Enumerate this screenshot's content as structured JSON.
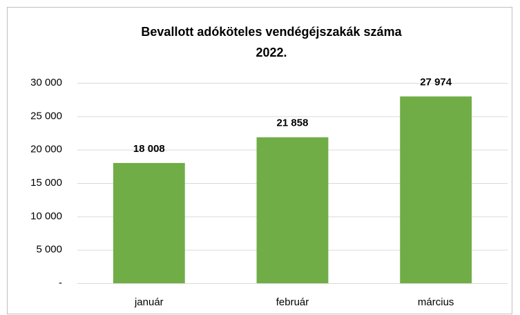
{
  "chart_data": {
    "type": "bar",
    "title": "Bevallott adóköteles vendégéjszakák száma",
    "subtitle": "2022.",
    "categories": [
      "január",
      "február",
      "március"
    ],
    "values": [
      18008,
      21858,
      27974
    ],
    "value_labels": [
      "18 008",
      "21 858",
      "27 974"
    ],
    "color": "#70ad47",
    "ylim": [
      0,
      30000
    ],
    "yticks": [
      {
        "value": 0,
        "label": "-"
      },
      {
        "value": 5000,
        "label": "5 000"
      },
      {
        "value": 10000,
        "label": "10 000"
      },
      {
        "value": 15000,
        "label": "15 000"
      },
      {
        "value": 20000,
        "label": "20 000"
      },
      {
        "value": 25000,
        "label": "25 000"
      },
      {
        "value": 30000,
        "label": "30 000"
      }
    ],
    "grid": true
  }
}
